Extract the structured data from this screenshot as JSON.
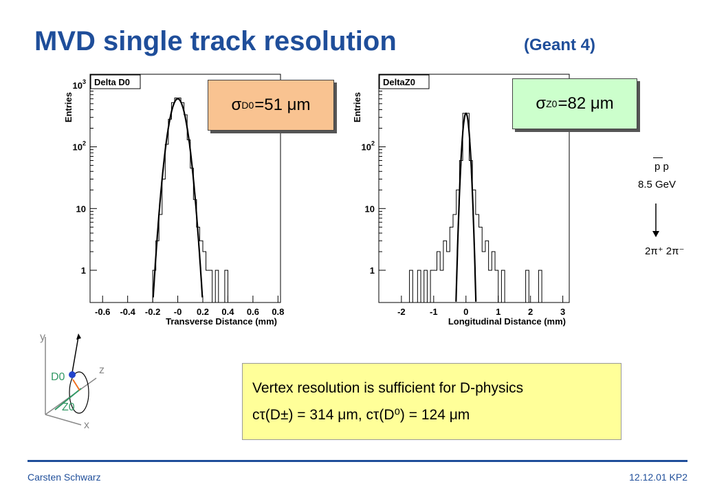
{
  "slide": {
    "title": "MVD single track resolution",
    "subtitle": "(Geant 4)",
    "footer_left": "Carsten Schwarz",
    "footer_right": "12.12.01 KP2"
  },
  "colors": {
    "title": "#1f4e9a",
    "sigma_d0_bg": "#f9c391",
    "sigma_z0_bg": "#ccffcc",
    "info_bg": "#ffff99",
    "sketch_green": "#339966"
  },
  "sigma_d0": {
    "sym": "σ",
    "sub": "D0",
    "val": "=51 μm"
  },
  "sigma_z0": {
    "sym": "σ",
    "sub": "Z0",
    "val": "=82 μm"
  },
  "reaction": {
    "line1": "p p",
    "line2": "8.5 GeV",
    "line3": "2π⁺ 2π⁻"
  },
  "info": {
    "line1": "Vertex resolution is sufficient for D-physics",
    "line2": "cτ(D±) = 314 μm, cτ(D⁰) = 124 μm"
  },
  "sketch": {
    "y": "y",
    "z": "z",
    "x": "x",
    "d0": "D0",
    "z0": "Z0"
  },
  "chart_data": [
    {
      "type": "histogram",
      "title": "Delta D0",
      "xlabel": "Transverse Distance (mm)",
      "ylabel": "Entries",
      "xlim": [
        -0.7,
        0.82
      ],
      "ylim": [
        0.3,
        1500
      ],
      "yscale": "log",
      "xticks": [
        -0.6,
        -0.4,
        -0.2,
        0,
        0.2,
        0.4,
        0.6,
        0.8
      ],
      "xtick_labels": [
        "-0.6",
        "-0.4",
        "-0.2",
        "-0",
        "0.2",
        "0.4",
        "0.6",
        "0.8"
      ],
      "ytick_values": [
        1,
        10,
        100,
        1000
      ],
      "ytick_labels": [
        "1",
        "10",
        "10^2",
        "10^3"
      ],
      "bin_edges": [
        -0.2,
        -0.175,
        -0.15,
        -0.125,
        -0.1,
        -0.075,
        -0.05,
        -0.025,
        0,
        0.025,
        0.05,
        0.075,
        0.1,
        0.125,
        0.15,
        0.175,
        0.2,
        0.225,
        0.25,
        0.275,
        0.3,
        0.325,
        0.35,
        0.375,
        0.4,
        0.425
      ],
      "counts": [
        1,
        3,
        8,
        30,
        110,
        280,
        520,
        620,
        620,
        520,
        330,
        130,
        45,
        14,
        5,
        3,
        2,
        1,
        1,
        0,
        1,
        0,
        0,
        1,
        0
      ],
      "fit": {
        "type": "gaussian",
        "amplitude": 600,
        "mean": 0.0,
        "sigma": 0.051
      }
    },
    {
      "type": "histogram",
      "title": "DeltaZ0",
      "xlabel": "Longitudinal Distance (mm)",
      "ylabel": "Entries",
      "xlim": [
        -2.7,
        3.2
      ],
      "ylim": [
        0.3,
        1500
      ],
      "yscale": "log",
      "xticks": [
        -2,
        -1,
        0,
        1,
        2,
        3
      ],
      "xtick_labels": [
        "-2",
        "-1",
        "0",
        "1",
        "2",
        "3"
      ],
      "ytick_values": [
        1,
        10,
        100
      ],
      "ytick_labels": [
        "1",
        "10",
        "10^2"
      ],
      "bin_edges": [
        -1.5,
        -1.4,
        -1.3,
        -1.2,
        -1.1,
        -1.0,
        -0.9,
        -0.8,
        -0.7,
        -0.6,
        -0.5,
        -0.4,
        -0.3,
        -0.2,
        -0.1,
        0,
        0.1,
        0.2,
        0.3,
        0.4,
        0.5,
        0.6,
        0.7,
        0.8,
        0.9,
        1.0,
        1.1,
        1.2,
        1.3
      ],
      "counts": [
        1,
        0,
        1,
        0,
        1,
        1,
        2,
        1,
        3,
        2,
        5,
        8,
        20,
        60,
        350,
        350,
        60,
        20,
        8,
        5,
        2,
        3,
        1,
        2,
        1,
        0,
        1,
        0
      ],
      "outliers": [
        -1.7,
        1.9,
        2.3
      ],
      "fit": {
        "type": "gaussian",
        "amplitude": 350,
        "mean": 0.0,
        "sigma": 0.082
      }
    }
  ]
}
